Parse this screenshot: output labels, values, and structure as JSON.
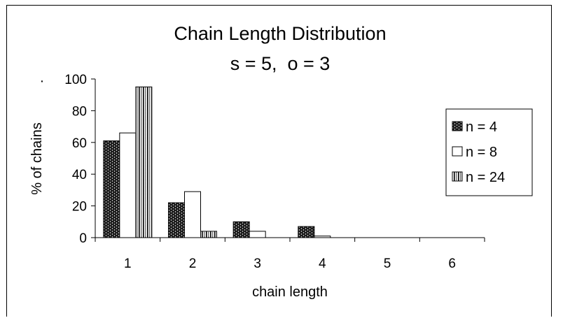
{
  "chart_data": {
    "type": "bar",
    "title": "Chain Length Distribution",
    "subtitle": "s = 5,  o = 3",
    "xlabel": "chain length",
    "ylabel": "% of chains",
    "y_label_prefix": "·",
    "categories": [
      "1",
      "2",
      "3",
      "4",
      "5",
      "6"
    ],
    "ylim": [
      0,
      100
    ],
    "yticks": [
      "0",
      "20",
      "40",
      "60",
      "80",
      "100"
    ],
    "grid": false,
    "legend": "right",
    "series": [
      {
        "name": "n = 4",
        "values": [
          61,
          22,
          10,
          7,
          0,
          0
        ],
        "pattern": "dark-dotted"
      },
      {
        "name": "n = 8",
        "values": [
          66,
          29,
          4,
          1,
          0,
          0
        ],
        "pattern": "white"
      },
      {
        "name": "n = 24",
        "values": [
          95,
          4,
          0,
          0,
          0,
          0
        ],
        "pattern": "light-dotted"
      }
    ]
  }
}
